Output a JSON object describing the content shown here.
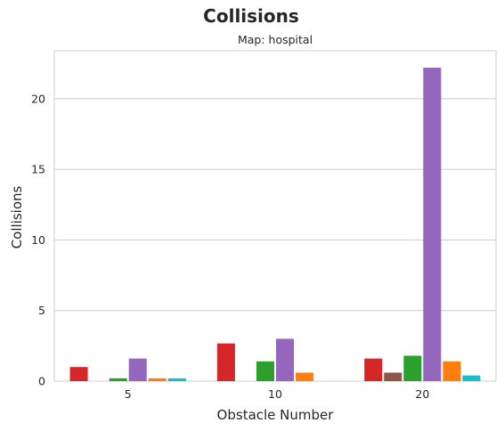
{
  "chart_data": {
    "type": "bar",
    "title": "Collisions",
    "subtitle": "Map: hospital",
    "xlabel": "Obstacle Number",
    "ylabel": "Collisions",
    "categories": [
      "5",
      "10",
      "20"
    ],
    "ylim": [
      0,
      23.4
    ],
    "yticks": [
      0,
      5,
      10,
      15,
      20
    ],
    "grid": true,
    "legend": "none",
    "series": [
      {
        "color": "#d62728",
        "values": [
          1.0,
          2.67,
          1.6
        ]
      },
      {
        "color": "#8c564b",
        "values": [
          0,
          0,
          0.6
        ]
      },
      {
        "color": "#2ca02c",
        "values": [
          0.2,
          1.4,
          1.8
        ]
      },
      {
        "color": "#9467bd",
        "values": [
          1.6,
          3.0,
          22.2
        ]
      },
      {
        "color": "#ff7f0e",
        "values": [
          0.2,
          0.6,
          1.4
        ]
      },
      {
        "color": "#17becf",
        "values": [
          0.2,
          0,
          0.4
        ]
      }
    ]
  }
}
